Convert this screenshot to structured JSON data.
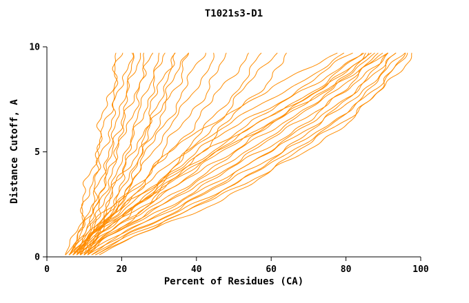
{
  "chart_data": {
    "type": "line",
    "title": "T1021s3-D1",
    "xlabel": "Percent of Residues (CA)",
    "ylabel": "Distance Cutoff, A",
    "xlim": [
      0,
      100
    ],
    "ylim": [
      0,
      10
    ],
    "x_ticks": [
      0,
      20,
      40,
      60,
      80,
      100
    ],
    "y_ticks": [
      0,
      5,
      10
    ],
    "grid": false,
    "legend": "none",
    "line_color": "#ff8c00",
    "axis_color": "#000000",
    "y_anchors": [
      0.1,
      1,
      2,
      3.5,
      5,
      6.5,
      8,
      9.75
    ],
    "curves": [
      [
        6,
        8,
        10,
        12,
        14,
        16,
        18,
        20
      ],
      [
        7,
        9,
        11,
        13,
        15,
        17,
        20,
        22
      ],
      [
        8,
        10,
        12,
        14,
        17,
        19,
        21,
        24
      ],
      [
        6,
        9,
        12,
        15,
        17,
        20,
        22,
        25
      ],
      [
        9,
        11,
        13,
        16,
        18,
        21,
        24,
        27
      ],
      [
        7,
        10,
        13,
        16,
        19,
        22,
        25,
        28
      ],
      [
        10,
        12,
        15,
        18,
        21,
        24,
        27,
        30
      ],
      [
        8,
        11,
        14,
        18,
        22,
        25,
        28,
        32
      ],
      [
        9,
        12,
        16,
        20,
        23,
        27,
        30,
        34
      ],
      [
        11,
        13,
        17,
        21,
        25,
        28,
        31,
        35
      ],
      [
        10,
        14,
        18,
        22,
        26,
        30,
        33,
        37
      ],
      [
        9,
        12,
        15,
        19,
        24,
        29,
        34,
        38
      ],
      [
        10,
        13,
        17,
        22,
        27,
        32,
        37,
        42
      ],
      [
        8,
        12,
        17,
        23,
        28,
        34,
        40,
        45
      ],
      [
        9,
        13,
        18,
        25,
        31,
        37,
        43,
        49
      ],
      [
        7,
        12,
        18,
        26,
        33,
        40,
        47,
        54
      ],
      [
        10,
        15,
        22,
        30,
        37,
        44,
        51,
        58
      ],
      [
        8,
        14,
        21,
        30,
        38,
        46,
        53,
        61
      ],
      [
        11,
        16,
        24,
        33,
        41,
        49,
        57,
        65
      ],
      [
        5,
        9,
        15,
        24,
        33,
        45,
        60,
        78
      ],
      [
        6,
        10,
        17,
        27,
        37,
        50,
        65,
        80
      ],
      [
        7,
        11,
        18,
        29,
        40,
        53,
        68,
        82
      ],
      [
        6,
        12,
        20,
        31,
        42,
        55,
        70,
        84
      ],
      [
        8,
        13,
        21,
        33,
        45,
        58,
        72,
        85
      ],
      [
        7,
        13,
        22,
        35,
        47,
        60,
        74,
        86
      ],
      [
        9,
        14,
        23,
        36,
        49,
        62,
        75,
        87
      ],
      [
        8,
        15,
        25,
        38,
        51,
        64,
        77,
        88
      ],
      [
        10,
        16,
        26,
        40,
        53,
        66,
        78,
        89
      ],
      [
        9,
        16,
        27,
        41,
        55,
        68,
        80,
        90
      ],
      [
        11,
        17,
        28,
        43,
        57,
        70,
        81,
        91
      ],
      [
        10,
        18,
        30,
        45,
        59,
        72,
        83,
        92
      ],
      [
        12,
        19,
        31,
        46,
        60,
        73,
        84,
        93
      ],
      [
        11,
        20,
        32,
        48,
        62,
        75,
        85,
        94
      ],
      [
        13,
        21,
        34,
        50,
        64,
        77,
        87,
        95
      ],
      [
        12,
        22,
        35,
        51,
        65,
        78,
        88,
        96
      ],
      [
        14,
        23,
        36,
        53,
        67,
        80,
        89,
        97
      ],
      [
        13,
        24,
        38,
        55,
        69,
        81,
        90,
        98
      ],
      [
        6,
        11,
        19,
        30,
        44,
        58,
        73,
        88
      ],
      [
        7,
        12,
        20,
        32,
        46,
        61,
        76,
        91
      ],
      [
        5,
        7,
        9,
        11,
        13,
        15,
        17,
        19
      ]
    ]
  }
}
